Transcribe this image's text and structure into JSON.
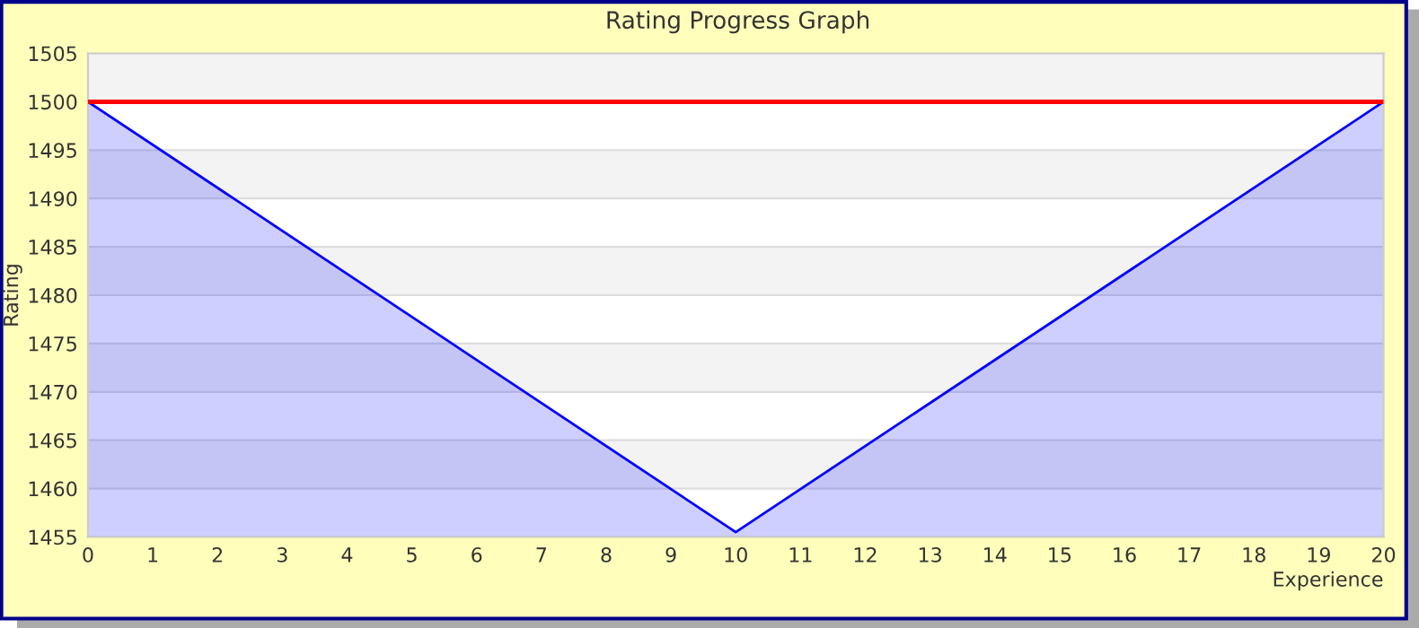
{
  "chart_data": {
    "type": "area",
    "title": "Rating Progress Graph",
    "xlabel": "Experience",
    "ylabel": "Rating",
    "series": [
      {
        "x": [
          0,
          10,
          20
        ],
        "values": [
          1500,
          1455.5,
          1500
        ],
        "color": "#0000ff"
      }
    ],
    "xlim": [
      0,
      20
    ],
    "xticks": [
      0,
      1,
      2,
      3,
      4,
      5,
      6,
      7,
      8,
      9,
      10,
      11,
      12,
      13,
      14,
      15,
      16,
      17,
      18,
      19,
      20
    ],
    "ylim": [
      1455,
      1505
    ],
    "yticks": [
      1455,
      1460,
      1465,
      1470,
      1475,
      1480,
      1485,
      1490,
      1495,
      1500,
      1505
    ],
    "ref_lines": [
      {
        "axis": "y",
        "value": 1500,
        "color": "#ff0000"
      }
    ],
    "grid": "y"
  }
}
